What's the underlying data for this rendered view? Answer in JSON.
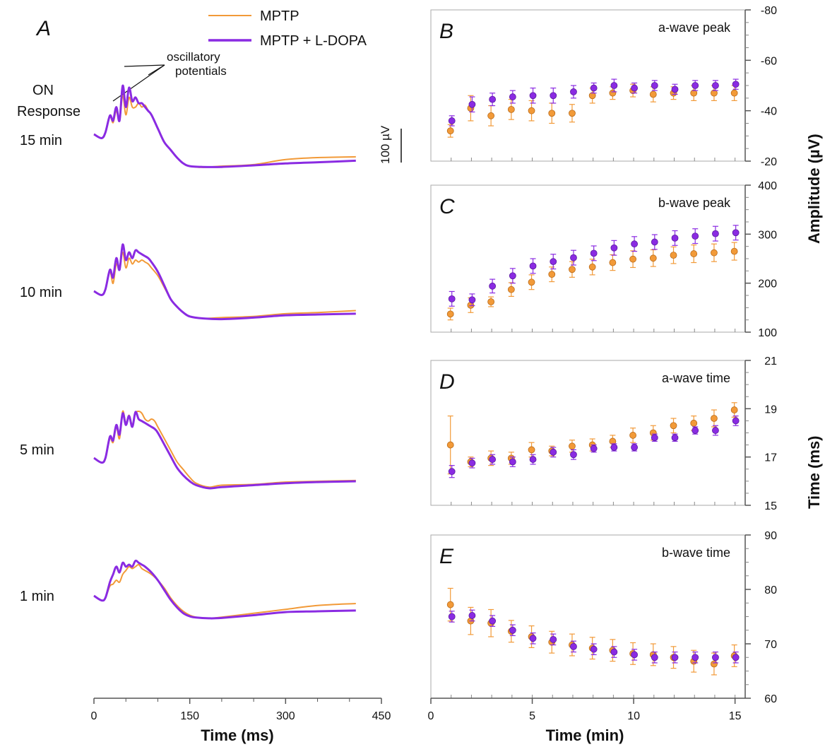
{
  "colors": {
    "mptp": "#f29a38",
    "ldopa": "#8a2be2",
    "axis": "#555555"
  },
  "legend": {
    "items": [
      {
        "label": "MPTP",
        "color": "#f29a38"
      },
      {
        "label": "MPTP + L-DOPA",
        "color": "#8a2be2"
      }
    ]
  },
  "panel_a": {
    "letter": "A",
    "on_response": [
      "ON",
      "Response"
    ],
    "annotation": [
      "oscillatory",
      "potentials"
    ],
    "scale_bar": "100 µV",
    "trace_labels": [
      "15 min",
      "10 min",
      "5 min",
      "1 min"
    ],
    "xlabel": "Time (ms)",
    "xticks": [
      0,
      150,
      300,
      450
    ]
  },
  "right": {
    "xlabel": "Time (min)",
    "xticks": [
      0,
      5,
      10,
      15
    ],
    "amp_label": "Amplitude (µV)",
    "time_label": "Time (ms)"
  },
  "chart_data": [
    {
      "type": "line",
      "panel": "A",
      "title": "",
      "xlabel": "Time (ms)",
      "xlim": [
        0,
        450
      ],
      "note": "ERG traces, vertically offset by recording time",
      "traces": [
        {
          "label": "15 min",
          "series": [
            {
              "name": "MPTP",
              "x": [
                0,
                12,
                18,
                25,
                30,
                35,
                40,
                45,
                50,
                55,
                60,
                65,
                70,
                75,
                80,
                85,
                90,
                100,
                110,
                120,
                130,
                140,
                150,
                170,
                200,
                250,
                300,
                350,
                410
              ],
              "y": [
                0,
                -10,
                5,
                45,
                30,
                60,
                35,
                100,
                50,
                95,
                70,
                70,
                80,
                70,
                75,
                60,
                50,
                15,
                -20,
                -40,
                -60,
                -75,
                -82,
                -85,
                -82,
                -78,
                -65,
                -60,
                -58
              ]
            },
            {
              "name": "MPTP + L-DOPA",
              "x": [
                0,
                12,
                18,
                25,
                30,
                35,
                40,
                45,
                50,
                55,
                60,
                65,
                70,
                75,
                80,
                85,
                90,
                100,
                110,
                120,
                130,
                140,
                150,
                170,
                200,
                250,
                300,
                350,
                410
              ],
              "y": [
                0,
                -10,
                5,
                48,
                35,
                70,
                35,
                125,
                70,
                120,
                85,
                95,
                80,
                80,
                70,
                60,
                50,
                15,
                -20,
                -40,
                -60,
                -75,
                -82,
                -84,
                -84,
                -80,
                -75,
                -72,
                -68
              ]
            }
          ]
        },
        {
          "label": "10 min",
          "series": [
            {
              "name": "MPTP",
              "x": [
                0,
                12,
                18,
                25,
                30,
                35,
                40,
                45,
                50,
                55,
                60,
                65,
                70,
                75,
                80,
                85,
                90,
                100,
                110,
                120,
                130,
                140,
                150,
                170,
                200,
                250,
                300,
                350,
                410
              ],
              "y": [
                0,
                -10,
                5,
                50,
                20,
                70,
                55,
                100,
                60,
                85,
                70,
                80,
                75,
                80,
                75,
                70,
                60,
                40,
                10,
                -20,
                -40,
                -55,
                -65,
                -70,
                -68,
                -65,
                -58,
                -55,
                -50
              ]
            },
            {
              "name": "MPTP + L-DOPA",
              "x": [
                0,
                12,
                18,
                25,
                30,
                35,
                40,
                45,
                50,
                55,
                60,
                65,
                70,
                75,
                80,
                85,
                90,
                100,
                110,
                120,
                130,
                140,
                150,
                170,
                200,
                250,
                300,
                350,
                410
              ],
              "y": [
                0,
                -10,
                5,
                55,
                35,
                85,
                55,
                120,
                80,
                100,
                85,
                105,
                100,
                95,
                90,
                85,
                75,
                50,
                15,
                -20,
                -40,
                -55,
                -65,
                -70,
                -72,
                -68,
                -62,
                -60,
                -58
              ]
            }
          ]
        },
        {
          "label": "5 min",
          "series": [
            {
              "name": "MPTP",
              "x": [
                0,
                12,
                18,
                25,
                30,
                35,
                40,
                45,
                50,
                55,
                60,
                65,
                70,
                75,
                80,
                85,
                90,
                95,
                100,
                110,
                120,
                130,
                140,
                150,
                160,
                180,
                200,
                250,
                300,
                350,
                410
              ],
              "y": [
                0,
                -12,
                0,
                50,
                40,
                80,
                50,
                120,
                90,
                110,
                85,
                115,
                120,
                115,
                100,
                95,
                100,
                95,
                80,
                50,
                20,
                -10,
                -30,
                -50,
                -65,
                -75,
                -70,
                -68,
                -62,
                -60,
                -58
              ]
            },
            {
              "name": "MPTP + L-DOPA",
              "x": [
                0,
                12,
                18,
                25,
                30,
                35,
                40,
                45,
                50,
                55,
                60,
                65,
                70,
                75,
                80,
                85,
                90,
                95,
                100,
                110,
                120,
                130,
                140,
                150,
                160,
                180,
                200,
                250,
                300,
                350,
                410
              ],
              "y": [
                0,
                -12,
                0,
                55,
                45,
                85,
                60,
                115,
                85,
                108,
                80,
                118,
                100,
                95,
                90,
                85,
                80,
                75,
                65,
                35,
                5,
                -25,
                -45,
                -60,
                -70,
                -78,
                -75,
                -70,
                -65,
                -62,
                -60
              ]
            }
          ]
        },
        {
          "label": "1 min",
          "series": [
            {
              "name": "MPTP",
              "x": [
                0,
                12,
                18,
                25,
                30,
                35,
                40,
                45,
                50,
                55,
                60,
                65,
                70,
                75,
                80,
                90,
                100,
                110,
                120,
                130,
                140,
                150,
                160,
                180,
                200,
                250,
                300,
                350,
                410
              ],
              "y": [
                0,
                -12,
                -5,
                25,
                30,
                40,
                35,
                55,
                65,
                75,
                70,
                75,
                80,
                70,
                65,
                55,
                40,
                20,
                -5,
                -25,
                -40,
                -50,
                -55,
                -58,
                -55,
                -45,
                -35,
                -25,
                -20
              ]
            },
            {
              "name": "MPTP + L-DOPA",
              "x": [
                0,
                12,
                18,
                25,
                30,
                35,
                40,
                45,
                50,
                55,
                60,
                65,
                70,
                75,
                80,
                90,
                100,
                110,
                120,
                130,
                140,
                150,
                160,
                180,
                200,
                250,
                300,
                350,
                410
              ],
              "y": [
                0,
                -12,
                -5,
                35,
                55,
                75,
                60,
                85,
                75,
                80,
                75,
                90,
                85,
                80,
                75,
                60,
                40,
                15,
                -10,
                -30,
                -45,
                -53,
                -56,
                -58,
                -57,
                -50,
                -42,
                -40,
                -38
              ]
            }
          ]
        }
      ]
    },
    {
      "type": "scatter",
      "panel": "B",
      "title": "a-wave peak",
      "xlabel": "Time (min)",
      "ylabel": "Amplitude (µV)",
      "xlim": [
        0,
        15.5
      ],
      "ylim": [
        -20,
        -80
      ],
      "yticks": [
        -80,
        -60,
        -40,
        -20
      ],
      "x": [
        1,
        2,
        3,
        4,
        5,
        6,
        7,
        8,
        9,
        10,
        11,
        12,
        13,
        14,
        15
      ],
      "series": [
        {
          "name": "MPTP",
          "values": [
            -32,
            -41,
            -38,
            -40.5,
            -40,
            -39,
            -39,
            -46,
            -47,
            -48,
            -46.5,
            -47,
            -47,
            -47,
            -47
          ],
          "errors": [
            2.5,
            5,
            4,
            4,
            4,
            4,
            3.5,
            3,
            2.5,
            2.5,
            3,
            2.5,
            3,
            3,
            3
          ]
        },
        {
          "name": "MPTP + L-DOPA",
          "values": [
            -36,
            -42.5,
            -44.5,
            -45.5,
            -46,
            -46,
            -47.5,
            -49,
            -50,
            -49,
            -50,
            -48.5,
            -50,
            -50,
            -50.5
          ],
          "errors": [
            2,
            3,
            2.5,
            2.5,
            3,
            3,
            2.5,
            2,
            2.5,
            2,
            2,
            2,
            2,
            2,
            2
          ]
        }
      ]
    },
    {
      "type": "scatter",
      "panel": "C",
      "title": "b-wave peak",
      "xlabel": "Time (min)",
      "ylabel": "Amplitude (µV)",
      "xlim": [
        0,
        15.5
      ],
      "ylim": [
        100,
        400
      ],
      "yticks": [
        100,
        200,
        300,
        400
      ],
      "x": [
        1,
        2,
        3,
        4,
        5,
        6,
        7,
        8,
        9,
        10,
        11,
        12,
        13,
        14,
        15
      ],
      "series": [
        {
          "name": "MPTP",
          "values": [
            137,
            155,
            162,
            187,
            202,
            218,
            228,
            233,
            242,
            249,
            251,
            257,
            260,
            262,
            265
          ],
          "errors": [
            12,
            15,
            10,
            14,
            15,
            15,
            16,
            16,
            16,
            17,
            17,
            17,
            18,
            18,
            18
          ]
        },
        {
          "name": "MPTP + L-DOPA",
          "values": [
            168,
            166,
            194,
            215,
            235,
            244,
            252,
            261,
            272,
            280,
            284,
            292,
            296,
            301,
            303
          ],
          "errors": [
            15,
            12,
            14,
            15,
            15,
            15,
            15,
            15,
            15,
            15,
            15,
            15,
            15,
            15,
            15
          ]
        }
      ]
    },
    {
      "type": "scatter",
      "panel": "D",
      "title": "a-wave time",
      "xlabel": "Time (min)",
      "ylabel": "Time (ms)",
      "xlim": [
        0,
        15.5
      ],
      "ylim": [
        15,
        21
      ],
      "yticks": [
        15,
        17,
        19,
        21
      ],
      "x": [
        1,
        2,
        3,
        4,
        5,
        6,
        7,
        8,
        9,
        10,
        11,
        12,
        13,
        14,
        15
      ],
      "series": [
        {
          "name": "MPTP",
          "values": [
            17.5,
            16.8,
            16.95,
            16.95,
            17.3,
            17.25,
            17.45,
            17.5,
            17.65,
            17.9,
            18.0,
            18.3,
            18.4,
            18.6,
            18.95
          ],
          "errors": [
            1.2,
            0.2,
            0.3,
            0.25,
            0.3,
            0.2,
            0.25,
            0.25,
            0.25,
            0.3,
            0.3,
            0.3,
            0.3,
            0.35,
            0.3
          ]
        },
        {
          "name": "MPTP + L-DOPA",
          "values": [
            16.4,
            16.75,
            16.9,
            16.8,
            16.9,
            17.2,
            17.1,
            17.35,
            17.4,
            17.4,
            17.8,
            17.8,
            18.1,
            18.1,
            18.5
          ],
          "errors": [
            0.25,
            0.2,
            0.2,
            0.2,
            0.2,
            0.2,
            0.2,
            0.15,
            0.15,
            0.15,
            0.15,
            0.15,
            0.15,
            0.2,
            0.2
          ]
        }
      ]
    },
    {
      "type": "scatter",
      "panel": "E",
      "title": "b-wave time",
      "xlabel": "Time (min)",
      "ylabel": "Time (ms)",
      "xlim": [
        0,
        15.5
      ],
      "ylim": [
        60,
        90
      ],
      "yticks": [
        60,
        70,
        80,
        90
      ],
      "x": [
        1,
        2,
        3,
        4,
        5,
        6,
        7,
        8,
        9,
        10,
        11,
        12,
        13,
        14,
        15
      ],
      "series": [
        {
          "name": "MPTP",
          "values": [
            77.2,
            74.2,
            73.8,
            72.3,
            71.3,
            70.3,
            69.8,
            69.2,
            68.8,
            68.2,
            68.0,
            67.5,
            66.8,
            66.3,
            67.8
          ],
          "errors": [
            3,
            2.5,
            2.5,
            2,
            2,
            2,
            2,
            2,
            2,
            2,
            2,
            2,
            2,
            2,
            2
          ]
        },
        {
          "name": "MPTP + L-DOPA",
          "values": [
            75.0,
            75.2,
            74.2,
            72.5,
            71.0,
            70.8,
            69.5,
            69.0,
            68.5,
            68.0,
            67.5,
            67.5,
            67.5,
            67.5,
            67.5
          ],
          "errors": [
            1,
            1,
            1,
            1,
            1,
            1,
            1,
            1,
            1,
            1,
            1,
            1,
            1,
            1,
            1
          ]
        }
      ]
    }
  ]
}
